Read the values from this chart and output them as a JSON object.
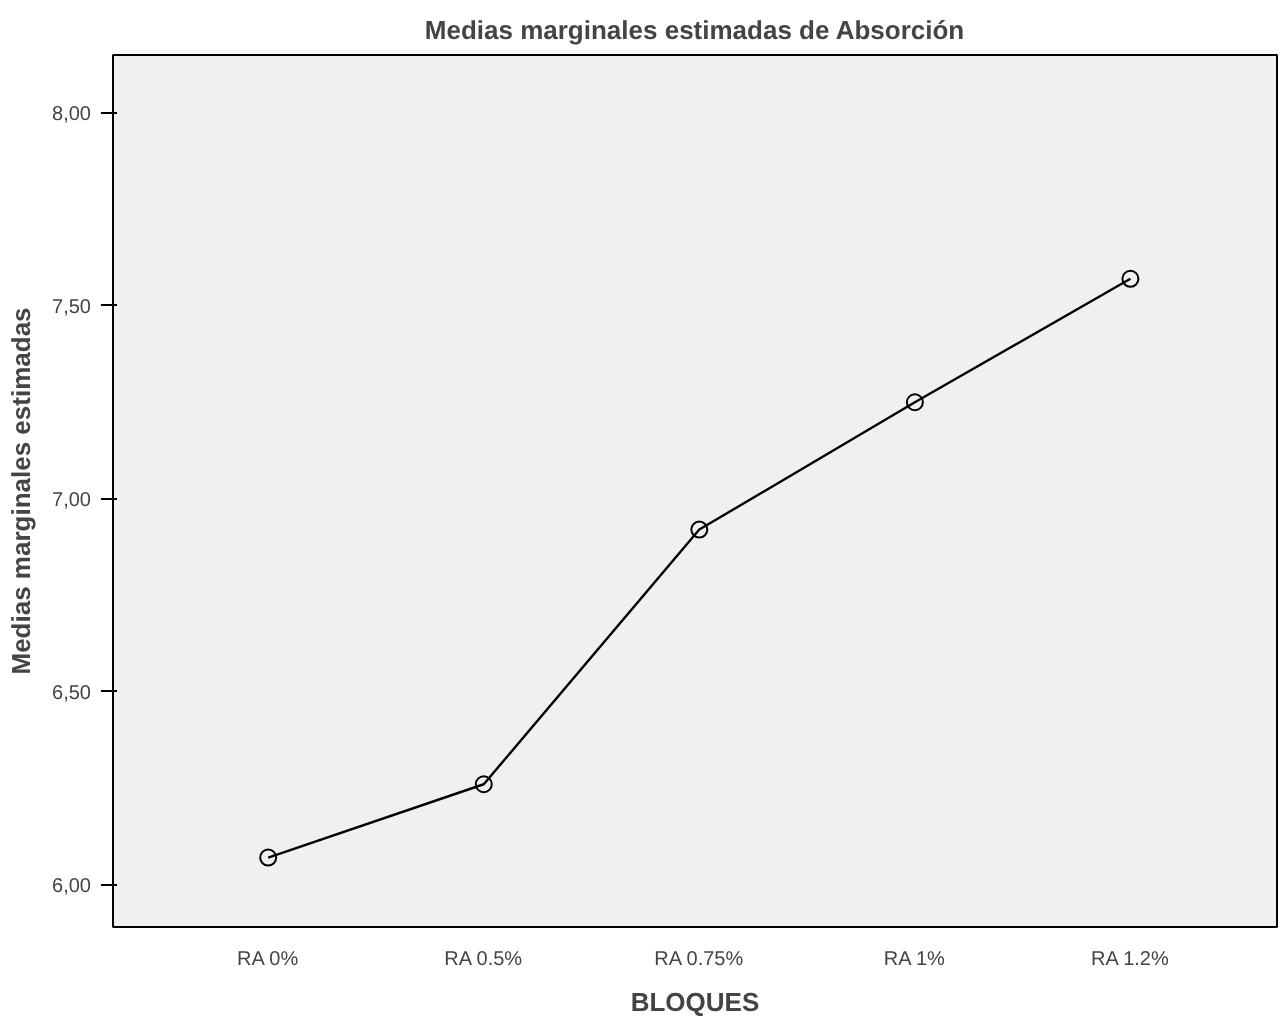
{
  "chart_data": {
    "type": "line",
    "title": "Medias marginales estimadas de Absorción",
    "xlabel": "BLOQUES",
    "ylabel": "Medias marginales estimadas",
    "categories": [
      "RA 0%",
      "RA 0.5%",
      "RA 0.75%",
      "RA 1%",
      "RA 1.2%"
    ],
    "series": [
      {
        "color": "#000000",
        "values": [
          6.07,
          6.26,
          6.92,
          7.25,
          7.57
        ]
      }
    ],
    "ylim": [
      5.89,
      8.15
    ],
    "yticks": [
      {
        "value": 6.0,
        "label": "6,00"
      },
      {
        "value": 6.5,
        "label": "6,50"
      },
      {
        "value": 7.0,
        "label": "7,00"
      },
      {
        "value": 7.5,
        "label": "7,50"
      },
      {
        "value": 8.0,
        "label": "8,00"
      }
    ],
    "marker": "circle",
    "grid": false
  }
}
